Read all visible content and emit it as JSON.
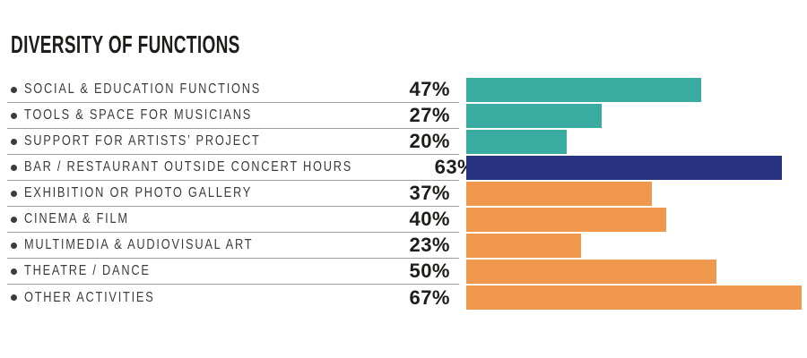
{
  "title": "DIVERSITY OF FUNCTIONS",
  "chart_data": {
    "type": "bar",
    "orientation": "horizontal",
    "title": "DIVERSITY OF FUNCTIONS",
    "categories": [
      "SOCIAL & EDUCATION FUNCTIONS",
      "TOOLS & SPACE FOR MUSICIANS",
      "SUPPORT FOR ARTISTS’ PROJECT",
      "BAR / RESTAURANT OUTSIDE CONCERT HOURS",
      "EXHIBITION OR PHOTO GALLERY",
      "CINEMA & FILM",
      "MULTIMEDIA & AUDIOVISUAL ART",
      "THEATRE / DANCE",
      "OTHER ACTIVITIES"
    ],
    "values": [
      47,
      27,
      20,
      63,
      37,
      40,
      23,
      50,
      67
    ],
    "value_suffix": "%",
    "xlim": [
      0,
      67
    ],
    "grid": false,
    "legend": false,
    "bar_color_keys": [
      "teal",
      "teal",
      "teal",
      "navy",
      "orange",
      "orange",
      "orange",
      "orange",
      "orange"
    ],
    "colors": {
      "teal": "#3AABA1",
      "navy": "#283381",
      "orange": "#F0994E"
    },
    "text_colors": {
      "title": "#1D1D1B",
      "label": "#3C3C3B",
      "value": "#1D1D1B",
      "separator": "#9C9C9C"
    }
  }
}
